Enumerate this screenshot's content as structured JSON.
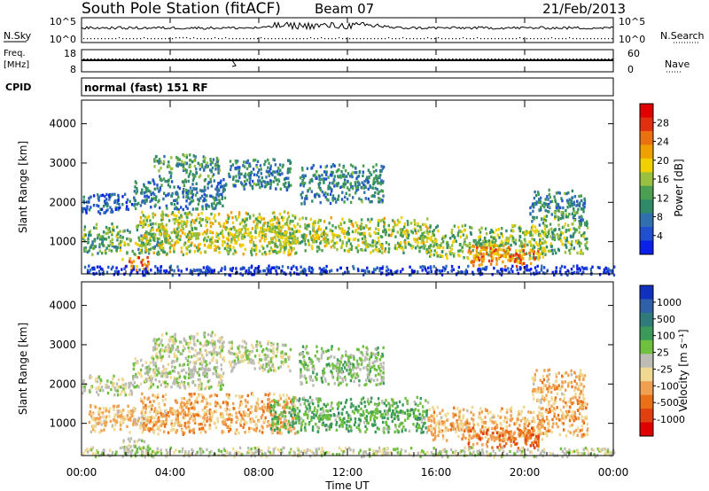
{
  "header": {
    "station": "South Pole Station (fitACF)",
    "beam": "Beam 07",
    "date": "21/Feb/2013"
  },
  "top_panels": {
    "nsky_label": "N.Sky",
    "nsky_ticks": [
      "10^5",
      "10^0"
    ],
    "nsearch_label": "N.Search",
    "nsearch_ticks": [
      "10^5",
      "10^0"
    ],
    "freq_label_1": "Freq.",
    "freq_label_2": "[MHz]",
    "freq_ticks": [
      "18",
      "8"
    ],
    "nave_label": "Nave",
    "nave_ticks": [
      "60",
      "0"
    ],
    "cpid_label": "CPID",
    "cpid_value": "normal (fast) 151 RF"
  },
  "time_axis": {
    "label": "Time UT",
    "ticks": [
      "00:00",
      "04:00",
      "08:00",
      "12:00",
      "16:00",
      "20:00",
      "00:00"
    ]
  },
  "chart_data": [
    {
      "type": "heatmap",
      "title": "",
      "xlabel": "Time UT",
      "ylabel": "Slant Range [km]",
      "ylim": [
        180,
        4600
      ],
      "yticks": [
        1000,
        2000,
        3000,
        4000
      ],
      "xlim_hours": [
        0,
        24
      ],
      "colorbar": {
        "label": "Power [dB]",
        "ticks": [
          "4",
          "8",
          "12",
          "16",
          "20",
          "24",
          "28"
        ],
        "range": [
          0,
          30
        ],
        "colors": [
          "#0a20e8",
          "#2050d0",
          "#3070b0",
          "#2f8a6a",
          "#4aa050",
          "#9ac040",
          "#f0d000",
          "#f0a000",
          "#ea7010",
          "#e03010",
          "#e00000"
        ]
      },
      "bands": [
        {
          "t": [
            0.0,
            2.3
          ],
          "r": [
            1750,
            2250
          ],
          "v": 5
        },
        {
          "t": [
            2.3,
            6.5
          ],
          "r": [
            1850,
            2650
          ],
          "v": 8
        },
        {
          "t": [
            3.2,
            6.2
          ],
          "r": [
            2650,
            3250
          ],
          "v": 11
        },
        {
          "t": [
            6.6,
            9.4
          ],
          "r": [
            2350,
            3150
          ],
          "v": 9
        },
        {
          "t": [
            9.8,
            13.6
          ],
          "r": [
            2000,
            3000
          ],
          "v": 9
        },
        {
          "t": [
            20.2,
            22.7
          ],
          "r": [
            1550,
            2350
          ],
          "v": 9
        },
        {
          "t": [
            0.0,
            3.8
          ],
          "r": [
            700,
            1500
          ],
          "v": 12
        },
        {
          "t": [
            2.6,
            9.6
          ],
          "r": [
            700,
            1800
          ],
          "v": 16
        },
        {
          "t": [
            8.5,
            15.6
          ],
          "r": [
            750,
            1650
          ],
          "v": 15
        },
        {
          "t": [
            15.6,
            20.8
          ],
          "r": [
            600,
            1450
          ],
          "v": 14
        },
        {
          "t": [
            17.4,
            20.6
          ],
          "r": [
            400,
            950
          ],
          "v": 22
        },
        {
          "t": [
            20.6,
            22.8
          ],
          "r": [
            700,
            1700
          ],
          "v": 13
        },
        {
          "t": [
            1.8,
            3.0
          ],
          "r": [
            280,
            650
          ],
          "v": 23
        },
        {
          "t": [
            0.0,
            24.0
          ],
          "r": [
            180,
            420
          ],
          "v": 3
        }
      ]
    },
    {
      "type": "heatmap",
      "title": "",
      "xlabel": "Time UT",
      "ylabel": "Slant Range [km]",
      "ylim": [
        180,
        4600
      ],
      "yticks": [
        1000,
        2000,
        3000,
        4000
      ],
      "xlim_hours": [
        0,
        24
      ],
      "colorbar": {
        "label": "Velocity [m s⁻¹]",
        "ticks": [
          "1000",
          "500",
          "100",
          "25",
          "-25",
          "-100",
          "-500",
          "-1000"
        ],
        "range": [
          -1200,
          1200
        ],
        "colors": [
          "#1030c0",
          "#2f60a8",
          "#2f7a7a",
          "#3a9a5a",
          "#70c040",
          "#bcbcb4",
          "#f0d890",
          "#f0a050",
          "#ea7018",
          "#e04010",
          "#e00000"
        ]
      },
      "bands": [
        {
          "t": [
            0.0,
            2.4
          ],
          "r": [
            1750,
            2250
          ],
          "v": 0
        },
        {
          "t": [
            2.3,
            6.4
          ],
          "r": [
            1900,
            2750
          ],
          "v": 10
        },
        {
          "t": [
            3.2,
            6.4
          ],
          "r": [
            2700,
            3350
          ],
          "v": 0
        },
        {
          "t": [
            6.6,
            9.4
          ],
          "r": [
            2350,
            3150
          ],
          "v": 0
        },
        {
          "t": [
            9.8,
            13.6
          ],
          "r": [
            2000,
            3000
          ],
          "v": 150
        },
        {
          "t": [
            20.3,
            22.7
          ],
          "r": [
            1550,
            2400
          ],
          "v": -350
        },
        {
          "t": [
            0.3,
            3.8
          ],
          "r": [
            800,
            1500
          ],
          "v": -300
        },
        {
          "t": [
            2.6,
            9.6
          ],
          "r": [
            750,
            1800
          ],
          "v": -400
        },
        {
          "t": [
            8.5,
            15.6
          ],
          "r": [
            800,
            1700
          ],
          "v": 300
        },
        {
          "t": [
            15.6,
            20.8
          ],
          "r": [
            600,
            1450
          ],
          "v": -350
        },
        {
          "t": [
            17.4,
            20.6
          ],
          "r": [
            400,
            950
          ],
          "v": -650
        },
        {
          "t": [
            20.6,
            22.8
          ],
          "r": [
            700,
            1700
          ],
          "v": -400
        },
        {
          "t": [
            1.8,
            3.0
          ],
          "r": [
            280,
            650
          ],
          "v": 80
        },
        {
          "t": [
            0.0,
            24.0
          ],
          "r": [
            180,
            420
          ],
          "v": 0
        }
      ]
    }
  ]
}
